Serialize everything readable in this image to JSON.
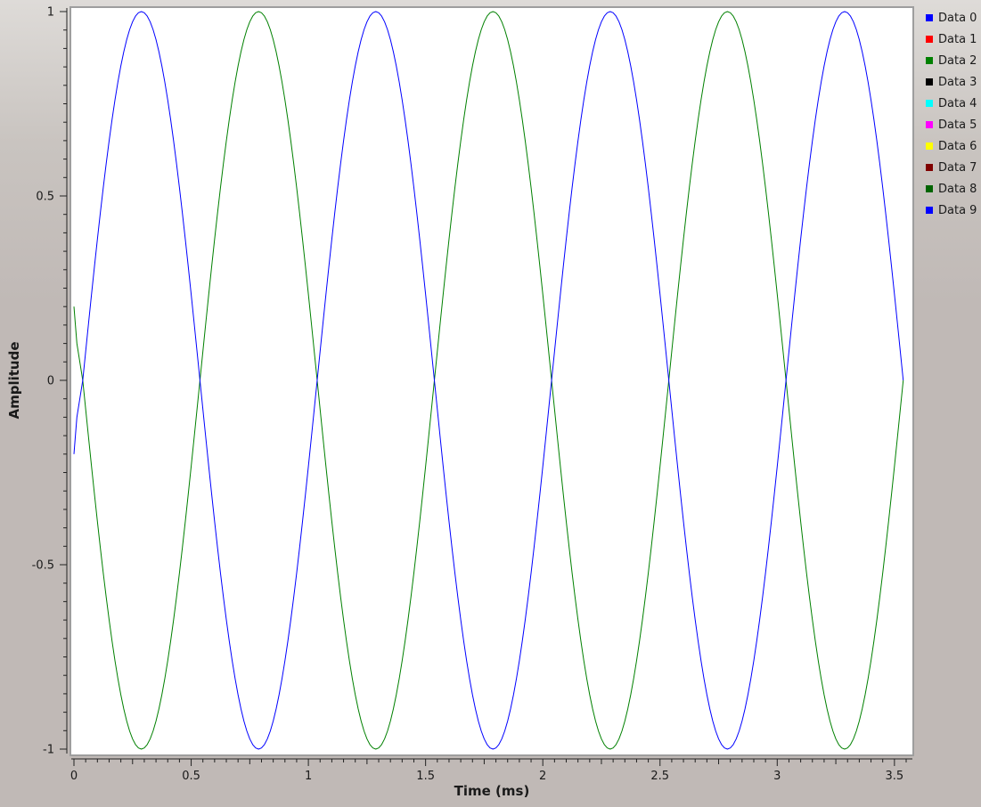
{
  "chart_data": {
    "type": "line",
    "xlabel": "Time (ms)",
    "ylabel": "Amplitude",
    "xlim": [
      0,
      3.55
    ],
    "ylim": [
      -1,
      1
    ],
    "x_ticks": [
      0,
      0.5,
      1,
      1.5,
      2,
      2.5,
      3,
      3.5
    ],
    "x_tick_labels": [
      "0",
      "0.5",
      "1",
      "1.5",
      "2",
      "2.5",
      "3",
      "3.5"
    ],
    "y_ticks": [
      1,
      0.5,
      0,
      -0.5,
      -1
    ],
    "y_tick_labels": [
      "1",
      "0.5",
      "0",
      "-0.5",
      "-1"
    ],
    "grid": false,
    "legend_position": "right",
    "legend": [
      {
        "label": "Data 0",
        "color": "#0000ff"
      },
      {
        "label": "Data 1",
        "color": "#ff0000"
      },
      {
        "label": "Data 2",
        "color": "#008000"
      },
      {
        "label": "Data 3",
        "color": "#000000"
      },
      {
        "label": "Data 4",
        "color": "#00ffff"
      },
      {
        "label": "Data 5",
        "color": "#ff00ff"
      },
      {
        "label": "Data 6",
        "color": "#ffff00"
      },
      {
        "label": "Data 7",
        "color": "#800000"
      },
      {
        "label": "Data 8",
        "color": "#006400"
      },
      {
        "label": "Data 9",
        "color": "#0000ff"
      }
    ],
    "series": [
      {
        "legend_index": 0,
        "color": "#0000ff",
        "x": [
          0,
          0.0125,
          0.0375,
          0.1625,
          0.2875,
          0.4125,
          0.5375,
          0.6625,
          0.7875,
          0.9125,
          1.0375,
          1.1625,
          1.2875,
          1.4125,
          1.5375,
          1.6625,
          1.7875,
          1.9125,
          2.0375,
          2.1625,
          2.2875,
          2.4125,
          2.5375,
          2.6625,
          2.7875,
          2.9125,
          3.0375,
          3.1625,
          3.2875,
          3.4125,
          3.5375
        ],
        "values": [
          -0.2,
          -0.1,
          0,
          0.707,
          1,
          0.707,
          0,
          -0.707,
          -1,
          -0.707,
          0,
          0.707,
          1,
          0.707,
          0,
          -0.707,
          -1,
          -0.707,
          0,
          0.707,
          1,
          0.707,
          0,
          -0.707,
          -1,
          -0.707,
          0,
          0.707,
          1,
          0.707,
          0
        ]
      },
      {
        "legend_index": 2,
        "color": "#008000",
        "x": [
          0,
          0.0125,
          0.0375,
          0.1625,
          0.2875,
          0.4125,
          0.5375,
          0.6625,
          0.7875,
          0.9125,
          1.0375,
          1.1625,
          1.2875,
          1.4125,
          1.5375,
          1.6625,
          1.7875,
          1.9125,
          2.0375,
          2.1625,
          2.2875,
          2.4125,
          2.5375,
          2.6625,
          2.7875,
          2.9125,
          3.0375,
          3.1625,
          3.2875,
          3.4125,
          3.5375
        ],
        "values": [
          0.2,
          0.1,
          0,
          -0.707,
          -1,
          -0.707,
          0,
          0.707,
          1,
          0.707,
          0,
          -0.707,
          -1,
          -0.707,
          0,
          0.707,
          1,
          0.707,
          0,
          -0.707,
          -1,
          -0.707,
          0,
          0.707,
          1,
          0.707,
          0,
          -0.707,
          -1,
          -0.707,
          0
        ]
      }
    ]
  }
}
